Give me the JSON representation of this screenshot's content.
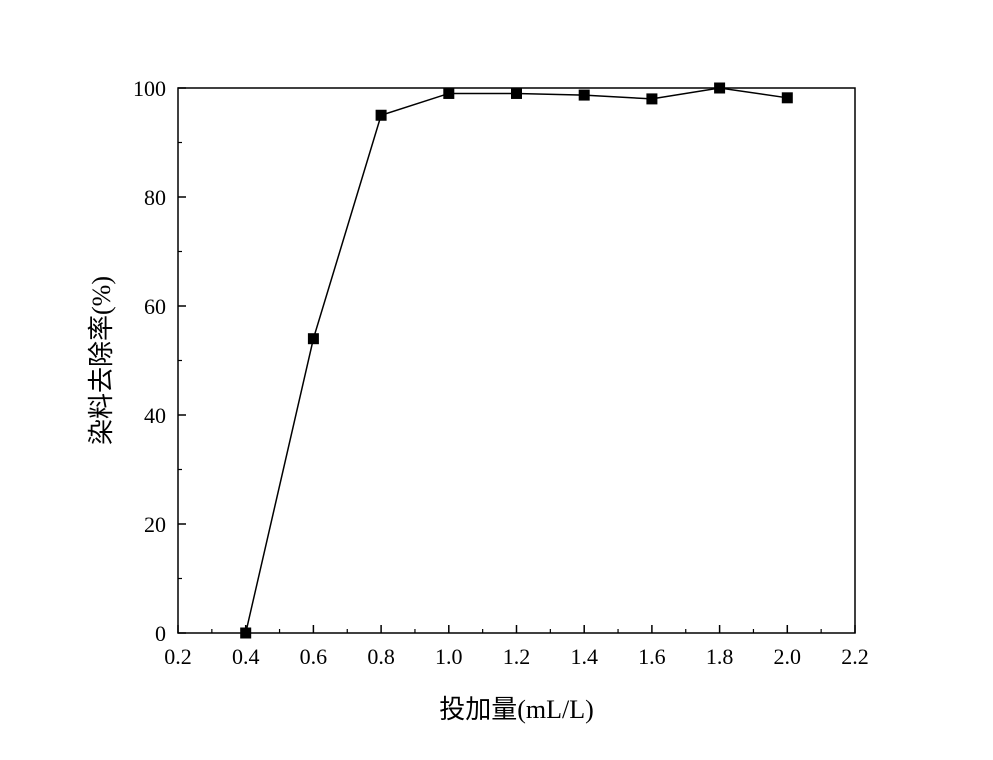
{
  "chart_data": {
    "type": "line",
    "title": "",
    "xlabel": "投加量(mL/L)",
    "ylabel": "染料去除率(%)",
    "xlim": [
      0.2,
      2.2
    ],
    "ylim": [
      0,
      100
    ],
    "x_ticks": [
      "0.2",
      "0.4",
      "0.6",
      "0.8",
      "1.0",
      "1.2",
      "1.4",
      "1.6",
      "1.8",
      "2.0",
      "2.2"
    ],
    "y_ticks": [
      "0",
      "20",
      "40",
      "60",
      "80",
      "100"
    ],
    "grid": false,
    "legend": "none",
    "series": [
      {
        "marker": "square",
        "color": "#000000",
        "x": [
          0.4,
          0.6,
          0.8,
          1.0,
          1.2,
          1.4,
          1.6,
          1.8,
          2.0
        ],
        "y": [
          0,
          54,
          95,
          99,
          99,
          98.7,
          98,
          100,
          98.2
        ]
      }
    ]
  }
}
